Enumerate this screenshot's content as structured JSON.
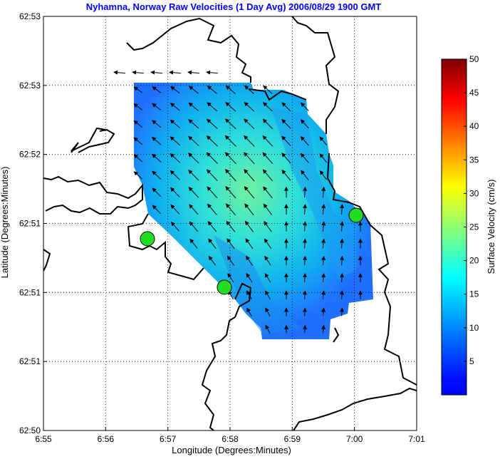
{
  "chart_data": {
    "type": "vector-field",
    "title": "Nyhamna, Norway Raw Velocities (1 Day Avg) 2006/08/29 1900 GMT",
    "title_color": "#0000ff",
    "xlabel": "Longitude (Degrees:Minutes)",
    "ylabel": "Latitude (Degrees:Minutes)",
    "x_ticks": [
      "6:55",
      "6:56",
      "6:57",
      "6:58",
      "6:59",
      "7:00",
      "7:01"
    ],
    "y_ticks": [
      "62:53",
      "62:53",
      "62:52",
      "62:51",
      "62:51",
      "62:51",
      "62:50"
    ],
    "grid": true,
    "colorbar": {
      "label": "Surface Velocity (cm/s)",
      "ticks": [
        "5",
        "10",
        "15",
        "20",
        "25",
        "30",
        "35",
        "40",
        "45",
        "50"
      ],
      "range": [
        0,
        50
      ]
    },
    "stations_color": "#22dd22",
    "land_color": "#000000"
  }
}
